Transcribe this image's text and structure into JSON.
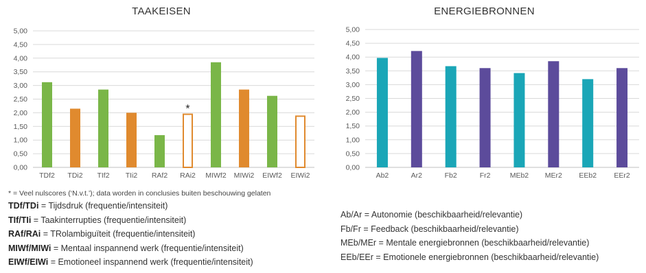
{
  "chart_data": [
    {
      "type": "bar",
      "title": "TAAKEISEN",
      "categories": [
        "TDf2",
        "TDi2",
        "TIf2",
        "TIi2",
        "RAf2",
        "RAi2",
        "MIWf2",
        "MIWi2",
        "EIWf2",
        "EIWi2"
      ],
      "values": [
        3.12,
        2.15,
        2.85,
        2.0,
        1.18,
        1.97,
        3.85,
        2.85,
        2.62,
        1.9
      ],
      "colors": [
        "#7ab648",
        "#e08a2e",
        "#7ab648",
        "#e08a2e",
        "#7ab648",
        "#e08a2e",
        "#7ab648",
        "#e08a2e",
        "#7ab648",
        "#e08a2e"
      ],
      "hollow": [
        false,
        false,
        false,
        false,
        false,
        true,
        false,
        false,
        false,
        true
      ],
      "annotations": [
        {
          "category": "RAi2",
          "text": "*"
        }
      ],
      "yticks": [
        "0,00",
        "0,50",
        "1,00",
        "1,50",
        "2,00",
        "2,50",
        "3,00",
        "3,50",
        "4,00",
        "4,50",
        "5,00"
      ],
      "ylim": [
        0,
        5
      ],
      "grid": true,
      "legend": "none"
    },
    {
      "type": "bar",
      "title": "ENERGIEBRONNEN",
      "categories": [
        "Ab2",
        "Ar2",
        "Fb2",
        "Fr2",
        "MEb2",
        "MEr2",
        "EEb2",
        "EEr2"
      ],
      "values": [
        3.97,
        4.22,
        3.67,
        3.6,
        3.42,
        3.85,
        3.2,
        3.6
      ],
      "colors": [
        "#1aa6b7",
        "#5c4b9b",
        "#1aa6b7",
        "#5c4b9b",
        "#1aa6b7",
        "#5c4b9b",
        "#1aa6b7",
        "#5c4b9b"
      ],
      "hollow": [
        false,
        false,
        false,
        false,
        false,
        false,
        false,
        false
      ],
      "annotations": [],
      "yticks": [
        "0,00",
        "0,50",
        "1,00",
        "1,50",
        "2,00",
        "2,50",
        "3,00",
        "3,50",
        "4,00",
        "4,50",
        "5,00"
      ],
      "ylim": [
        0,
        5
      ],
      "grid": true,
      "legend": "none"
    }
  ],
  "note": "* = Veel nulscores (‘N.v.t.’); data worden in conclusies buiten beschouwing gelaten",
  "legend_left": [
    {
      "code": "TDf/TDi",
      "text": " = Tijdsdruk (frequentie/intensiteit)"
    },
    {
      "code": "TIf/TIi",
      "text": " = Taakinterrupties (frequentie/intensiteit)"
    },
    {
      "code": "RAf/RAi",
      "text": " = TRolambiguïteit (frequentie/intensiteit)"
    },
    {
      "code": "MIWf/MIWi",
      "text": " = Mentaal inspannend werk (frequentie/intensiteit)"
    },
    {
      "code": "EIWf/EIWi",
      "text": " = Emotioneel inspannend werk (frequentie/intensiteit)"
    }
  ],
  "legend_right": [
    "Ab/Ar = Autonomie (beschikbaarheid/relevantie)",
    "Fb/Fr = Feedback (beschikbaarheid/relevantie)",
    "MEb/MEr = Mentale energiebronnen (beschikbaarheid/relevantie)",
    "EEb/EEr = Emotionele energiebronnen (beschikbaarheid/relevantie)"
  ]
}
